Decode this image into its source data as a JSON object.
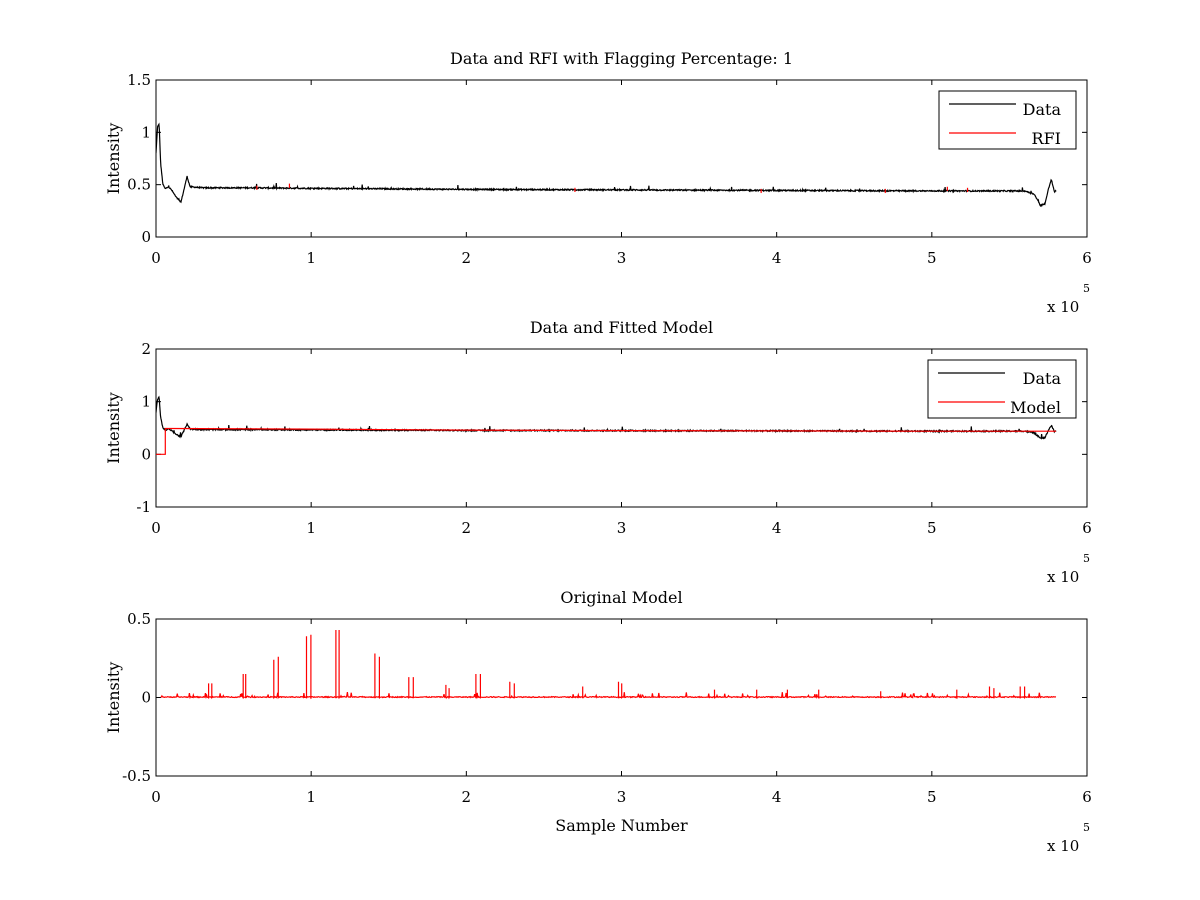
{
  "chart_data": [
    {
      "type": "line",
      "title": "Data and RFI with Flagging Percentage: 1",
      "xlabel": "",
      "ylabel": "Intensity",
      "xlim": [
        0,
        600000
      ],
      "ylim": [
        0,
        1.5
      ],
      "xticks": [
        "0",
        "1",
        "2",
        "3",
        "4",
        "5",
        "6"
      ],
      "yticks": [
        "0",
        "0.5",
        "1",
        "1.5"
      ],
      "x_exponent_base": "x 10",
      "x_exponent": "5",
      "grid": false,
      "legend_position": "top-right",
      "series": [
        {
          "name": "Data",
          "color": "#000000",
          "x": [
            0,
            1000,
            2000,
            3000,
            4500,
            6000,
            8000,
            10000,
            13000,
            16000,
            18000,
            20000,
            22000,
            30000,
            60000,
            100000,
            200000,
            300000,
            400000,
            500000,
            560000,
            566000,
            570000,
            573000,
            575000,
            577000,
            579000,
            580000
          ],
          "y": [
            0.8,
            1.05,
            1.08,
            0.7,
            0.5,
            0.46,
            0.48,
            0.45,
            0.38,
            0.33,
            0.45,
            0.58,
            0.48,
            0.47,
            0.47,
            0.465,
            0.455,
            0.45,
            0.445,
            0.44,
            0.44,
            0.41,
            0.3,
            0.32,
            0.45,
            0.55,
            0.43,
            0.44
          ]
        },
        {
          "name": "RFI",
          "color": "#ff0000",
          "x": [
            65000,
            86000,
            270000,
            390000,
            470000,
            510000,
            523000
          ],
          "y": [
            0.49,
            0.51,
            0.47,
            0.46,
            0.46,
            0.48,
            0.47
          ]
        }
      ]
    },
    {
      "type": "line",
      "title": "Data and Fitted Model",
      "xlabel": "",
      "ylabel": "Intensity",
      "xlim": [
        0,
        600000
      ],
      "ylim": [
        -1,
        2
      ],
      "xticks": [
        "0",
        "1",
        "2",
        "3",
        "4",
        "5",
        "6"
      ],
      "yticks": [
        "-1",
        "0",
        "1",
        "2"
      ],
      "x_exponent_base": "x 10",
      "x_exponent": "5",
      "grid": false,
      "legend_position": "top-right",
      "series": [
        {
          "name": "Data",
          "color": "#000000",
          "x": [
            0,
            1000,
            2000,
            3000,
            4500,
            6000,
            8000,
            10000,
            13000,
            16000,
            18000,
            20000,
            22000,
            30000,
            60000,
            100000,
            200000,
            300000,
            400000,
            500000,
            560000,
            566000,
            570000,
            573000,
            575000,
            577000,
            579000,
            580000
          ],
          "y": [
            0.8,
            1.05,
            1.08,
            0.7,
            0.5,
            0.46,
            0.48,
            0.45,
            0.38,
            0.33,
            0.45,
            0.58,
            0.48,
            0.47,
            0.47,
            0.465,
            0.455,
            0.45,
            0.445,
            0.44,
            0.44,
            0.41,
            0.3,
            0.32,
            0.45,
            0.55,
            0.43,
            0.44
          ]
        },
        {
          "name": "Model",
          "color": "#ff0000",
          "x": [
            0,
            6000,
            6000,
            10000,
            100000,
            200000,
            300000,
            400000,
            500000,
            580000
          ],
          "y": [
            0,
            0,
            0.49,
            0.49,
            0.48,
            0.46,
            0.45,
            0.445,
            0.44,
            0.44
          ]
        }
      ]
    },
    {
      "type": "line",
      "title": "Original Model",
      "xlabel": "Sample Number",
      "ylabel": "Intensity",
      "xlim": [
        0,
        600000
      ],
      "ylim": [
        -0.5,
        0.5
      ],
      "xticks": [
        "0",
        "1",
        "2",
        "3",
        "4",
        "5",
        "6"
      ],
      "yticks": [
        "-0.5",
        "0",
        "0.5"
      ],
      "x_exponent_base": "x 10",
      "x_exponent": "5",
      "grid": false,
      "series": [
        {
          "color": "#ff0000",
          "baseline": 0.0,
          "x_range": [
            3000,
            580000
          ],
          "spikes": [
            {
              "x": 34000,
              "y": 0.09
            },
            {
              "x": 36000,
              "y": 0.09
            },
            {
              "x": 56000,
              "y": 0.15
            },
            {
              "x": 58000,
              "y": 0.15
            },
            {
              "x": 76000,
              "y": 0.24
            },
            {
              "x": 79000,
              "y": 0.26
            },
            {
              "x": 97000,
              "y": 0.39
            },
            {
              "x": 100000,
              "y": 0.4
            },
            {
              "x": 116000,
              "y": 0.43
            },
            {
              "x": 118000,
              "y": 0.43
            },
            {
              "x": 141000,
              "y": 0.28
            },
            {
              "x": 144000,
              "y": 0.26
            },
            {
              "x": 163000,
              "y": 0.13
            },
            {
              "x": 166000,
              "y": 0.13
            },
            {
              "x": 187000,
              "y": 0.08
            },
            {
              "x": 189000,
              "y": 0.06
            },
            {
              "x": 206000,
              "y": 0.15
            },
            {
              "x": 209000,
              "y": 0.15
            },
            {
              "x": 228000,
              "y": 0.1
            },
            {
              "x": 231000,
              "y": 0.09
            },
            {
              "x": 275000,
              "y": 0.07
            },
            {
              "x": 298000,
              "y": 0.1
            },
            {
              "x": 300000,
              "y": 0.09
            },
            {
              "x": 360000,
              "y": 0.05
            },
            {
              "x": 387000,
              "y": 0.05
            },
            {
              "x": 407000,
              "y": 0.05
            },
            {
              "x": 427000,
              "y": 0.05
            },
            {
              "x": 467000,
              "y": 0.04
            },
            {
              "x": 516000,
              "y": 0.05
            },
            {
              "x": 537000,
              "y": 0.07
            },
            {
              "x": 540000,
              "y": 0.06
            },
            {
              "x": 557000,
              "y": 0.07
            },
            {
              "x": 560000,
              "y": 0.07
            }
          ]
        }
      ]
    }
  ]
}
